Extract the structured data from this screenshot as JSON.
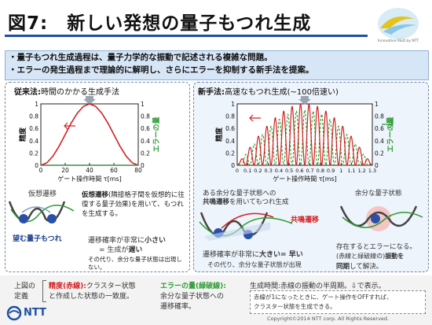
{
  "slide": {
    "title": "図7:　新しい発想の量子もつれ生成",
    "logo_caption": "Innovative R&D by NTT",
    "summary": [
      "・量子もつれ生成過程は、量子力学的な振動で記述される複雑な問題。",
      "・エラーの発生過程まで理論的に解明し、さらにエラーを抑制する新手法を提案。"
    ]
  },
  "left_panel": {
    "heading_bold": "従来法:",
    "heading": "時間のかかる生成手法",
    "diagram_label": "仮想遷移",
    "entangled_label": "望む量子もつれ",
    "desc_bold": "仮想遷移",
    "desc": "(隣接格子間を仮想的に往復する量子効果)を用いて、もつれを生成する。",
    "prob_line1_a": "遷移確率が非常に",
    "prob_line1_b": "小さい",
    "prob_line2_a": "= 生成が",
    "prob_line2_b": "遅い",
    "note": "その代り、余分な量子状態は出現しない。"
  },
  "right_panel": {
    "heading_bold": "新手法:",
    "heading": "高速なもつれ生成(~100倍速い)",
    "diagram_label_a": "ある余分な量子状態への",
    "diagram_label_b_bold": "共鳴遷移",
    "diagram_label_b": "を用いてもつれ生成",
    "resonance_label": "共鳴遷移",
    "extra_state_label": "余分な量子状態",
    "prob_a": "遷移確率が非常に",
    "prob_b": "大きい",
    "prob_c": "= 早い",
    "extra_note": "その代り、余分な量子状態が出現",
    "right_note_1": "存在するとエラーになる。",
    "right_note_2a": "(赤線と緑破線の)",
    "right_note_2b": "振動を",
    "right_note_3a": "同期",
    "right_note_3b": "して解決。"
  },
  "chart_data": [
    {
      "type": "line",
      "panel": "従来法",
      "xlabel": "ゲート操作時間 τ[ms]",
      "ylabel_left": "精度",
      "ylabel_right": "エラーの量",
      "xlim": [
        0,
        80
      ],
      "ylim": [
        0,
        1
      ],
      "y2lim": [
        0,
        1
      ],
      "x_ticks": [
        0,
        20,
        40,
        60,
        80
      ],
      "y_ticks": [
        0,
        0.2,
        0.4,
        0.6,
        0.8,
        1
      ],
      "series": [
        {
          "color": "#d22020",
          "style": "solid",
          "x": [
            0,
            5,
            10,
            15,
            20,
            25,
            30,
            35,
            40,
            45,
            50,
            55,
            60,
            65,
            70,
            75,
            80
          ],
          "y": [
            0,
            0.04,
            0.15,
            0.31,
            0.5,
            0.69,
            0.85,
            0.96,
            1,
            0.96,
            0.85,
            0.69,
            0.5,
            0.31,
            0.15,
            0.04,
            0
          ]
        },
        {
          "color": "#2c9a33",
          "style": "dashed",
          "x": [
            0,
            80
          ],
          "y": [
            0,
            0
          ]
        }
      ],
      "marker_x": 40
    },
    {
      "type": "line",
      "panel": "新手法",
      "xlabel": "ゲート操作時間 τ[ms]",
      "ylabel_left": "精度",
      "ylabel_right": "エラーの量",
      "xlim": [
        0,
        1.3
      ],
      "ylim": [
        0,
        1
      ],
      "y2lim": [
        0,
        1
      ],
      "x_ticks": [
        0,
        0.1,
        0.2,
        0.3,
        0.4,
        0.5,
        0.6,
        0.7,
        0.8,
        0.9,
        1,
        1.1,
        1.2,
        1.3
      ],
      "y_ticks": [
        0,
        0.2,
        0.4,
        0.6,
        0.8,
        1
      ],
      "marker_x": 0.65,
      "oscillations": 16
    }
  ],
  "footer": {
    "note_a": "上図の",
    "note_b": "定義",
    "precision_bold": "精度(赤線):",
    "precision_text_1": "クラスター状態",
    "precision_text_2": "と作成した状態の一致度。",
    "error_bold": "エラーの量(緑破線):",
    "error_text_1": "余分な量子状態への",
    "error_text_2": "遷移確率。",
    "time_text": "生成時間:赤線の振動の半周期。⇩で表示。",
    "box_1": "赤線が1になったときに、ゲート操作をOFFすれば、",
    "box_2": "クラスター状態を生成できる。",
    "ntt": "NTT",
    "copyright": "Copyright©2014 NTT corp. All Rights Reserved."
  },
  "colors": {
    "accent_blue": "#1f4fa3",
    "precision_red": "#d22020",
    "error_green": "#2c9a33",
    "summary_bg": "#d7e6f6"
  }
}
